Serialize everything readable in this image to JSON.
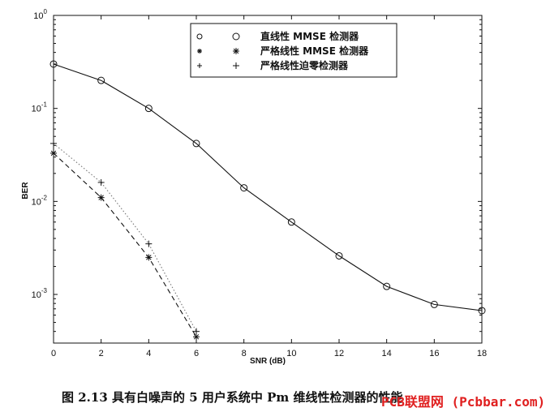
{
  "caption": "图 2.13   具有白噪声的 5 用户系统中 Pm 维线性检测器的性能",
  "watermark": "PCB联盟网 (Pcbbar.com)",
  "chart_data": {
    "type": "line",
    "xlabel": "SNR (dB)",
    "ylabel": "BER",
    "xlim": [
      0,
      18
    ],
    "ylim": [
      0.0003,
      1
    ],
    "yscale": "log",
    "x_ticks": [
      "0",
      "2",
      "4",
      "6",
      "8",
      "10",
      "12",
      "14",
      "16",
      "18"
    ],
    "y_ticks": [
      {
        "base": "10",
        "exp": "0"
      },
      {
        "base": "10",
        "exp": "-1"
      },
      {
        "base": "10",
        "exp": "-2"
      },
      {
        "base": "10",
        "exp": "-3"
      }
    ],
    "legend_position": "top-right",
    "grid": false,
    "series": [
      {
        "name": "直线性 MMSE 检测器",
        "line": "solid",
        "marker": "circle",
        "x": [
          0,
          2,
          4,
          6,
          8,
          10,
          12,
          14,
          16,
          18
        ],
        "y": [
          0.3,
          0.2,
          0.1,
          0.042,
          0.014,
          0.006,
          0.0026,
          0.00122,
          0.00078,
          0.00067
        ]
      },
      {
        "name": "严格线性 MMSE 检测器",
        "line": "dashed",
        "marker": "asterisk",
        "x": [
          0,
          2,
          4,
          6
        ],
        "y": [
          0.033,
          0.011,
          0.0025,
          0.00035
        ]
      },
      {
        "name": "严格线性迫零检测器",
        "line": "dotted",
        "marker": "plus",
        "x": [
          0,
          2,
          4,
          6
        ],
        "y": [
          0.042,
          0.016,
          0.0035,
          0.0004
        ]
      }
    ]
  }
}
